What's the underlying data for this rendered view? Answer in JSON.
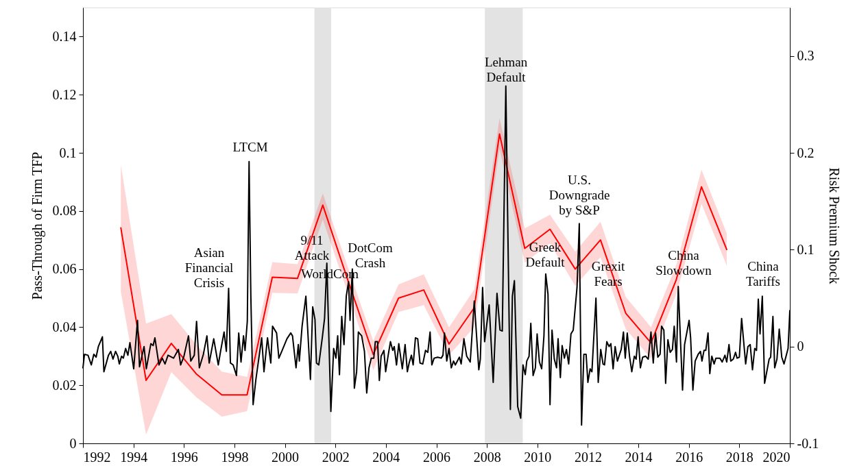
{
  "chart_data": {
    "type": "line",
    "ylabel": "Pass-Through of Firm TFP",
    "y2label": "Risk Premium Shock",
    "xlim": [
      1992,
      2020
    ],
    "xticks": [
      1992,
      1994,
      1996,
      1998,
      2000,
      2002,
      2004,
      2006,
      2008,
      2010,
      2012,
      2014,
      2016,
      2018,
      2020
    ],
    "ylim": [
      0,
      0.15
    ],
    "yticks": [
      0,
      0.02,
      0.04,
      0.06,
      0.08,
      0.1,
      0.12,
      0.14
    ],
    "y2lim": [
      -0.1,
      0.35
    ],
    "y2ticks": [
      -0.1,
      0,
      0.1,
      0.2,
      0.3
    ],
    "grid": false,
    "bands": [
      {
        "axis": "x",
        "from": 2001.17,
        "to": 2001.83,
        "color": "#e3e3e3"
      },
      {
        "axis": "x",
        "from": 2007.92,
        "to": 2009.42,
        "color": "#e3e3e3"
      }
    ],
    "annotations": [
      "Asian\nFinancial\nCrisis",
      "LTCM",
      "9/11\nAttack",
      "WorldCom",
      "DotCom\nCrash",
      "Lehman\nDefault",
      "Greek\nDefault",
      "U.S.\nDowngrade\nby S&P",
      "Grexit\nFears",
      "China\nSlowdown",
      "China\nTariffs"
    ],
    "series": [
      {
        "color": "#ff0000",
        "x": [
          1993.5,
          1994.5,
          1995.5,
          1996.5,
          1997.5,
          1998.5,
          1999.5,
          2000.5,
          2001.5,
          2002.5,
          2003.5,
          2004.5,
          2005.5,
          2006.5,
          2007.5,
          2008.5,
          2009.5,
          2010.5,
          2011.5,
          2012.5,
          2013.5,
          2014.5,
          2015.5,
          2016.5,
          2017.5
        ],
        "values": [
          0.0742,
          0.0217,
          0.0344,
          0.0238,
          0.0167,
          0.0167,
          0.0572,
          0.0568,
          0.082,
          0.056,
          0.0306,
          0.05,
          0.0528,
          0.0342,
          0.0467,
          0.1065,
          0.0671,
          0.0737,
          0.06,
          0.07,
          0.0448,
          0.0346,
          0.0563,
          0.0883,
          0.0667
        ],
        "lower": [
          0.0523,
          0.003,
          0.0245,
          0.0158,
          0.0092,
          0.0111,
          0.0518,
          0.0516,
          0.077,
          0.0515,
          0.0252,
          0.0452,
          0.0476,
          0.0304,
          0.04,
          0.1013,
          0.0622,
          0.0688,
          0.0542,
          0.0641,
          0.0393,
          0.0292,
          0.0513,
          0.0824,
          0.0612
        ],
        "upper": [
          0.0959,
          0.0412,
          0.0445,
          0.0339,
          0.0247,
          0.0229,
          0.0624,
          0.0617,
          0.086,
          0.0605,
          0.0353,
          0.0547,
          0.0582,
          0.04,
          0.053,
          0.1119,
          0.074,
          0.0787,
          0.066,
          0.0763,
          0.0504,
          0.04,
          0.0613,
          0.0942,
          0.0723
        ]
      },
      {
        "color": "#000000",
        "axis": "y2",
        "x": [
          1992.0,
          1992.06,
          1992.2,
          1992.33,
          1992.43,
          1992.52,
          1992.61,
          1992.77,
          1992.83,
          1993.01,
          1993.1,
          1993.19,
          1993.29,
          1993.38,
          1993.44,
          1993.53,
          1993.6,
          1993.69,
          1993.78,
          1993.86,
          1994.01,
          1994.16,
          1994.24,
          1994.42,
          1994.51,
          1994.69,
          1994.78,
          1994.85,
          1995.01,
          1995.14,
          1995.25,
          1995.37,
          1995.59,
          1995.78,
          1995.87,
          1996.0,
          1996.18,
          1996.27,
          1996.41,
          1996.5,
          1996.61,
          1996.77,
          1996.91,
          1997.0,
          1997.18,
          1997.36,
          1997.45,
          1997.59,
          1997.68,
          1997.77,
          1997.84,
          1997.95,
          1998.08,
          1998.17,
          1998.26,
          1998.36,
          1998.42,
          1998.51,
          1998.58,
          1998.65,
          1998.74,
          1998.85,
          1999.08,
          1999.17,
          1999.31,
          1999.44,
          1999.51,
          1999.67,
          1999.76,
          1999.89,
          2000.08,
          2000.23,
          2000.3,
          2000.44,
          2000.53,
          2000.57,
          2000.68,
          2000.83,
          2001.01,
          2001.1,
          2001.19,
          2001.25,
          2001.34,
          2001.48,
          2001.57,
          2001.66,
          2001.82,
          2001.93,
          2002.02,
          2002.09,
          2002.16,
          2002.25,
          2002.34,
          2002.43,
          2002.52,
          2002.58,
          2002.67,
          2002.75,
          2002.84,
          2002.91,
          2003.04,
          2003.15,
          2003.24,
          2003.33,
          2003.42,
          2003.52,
          2003.58,
          2003.67,
          2003.74,
          2003.81,
          2003.92,
          2003.99,
          2004.09,
          2004.18,
          2004.27,
          2004.33,
          2004.42,
          2004.51,
          2004.65,
          2004.76,
          2004.85,
          2004.92,
          2005.01,
          2005.08,
          2005.17,
          2005.26,
          2005.35,
          2005.46,
          2005.57,
          2005.66,
          2005.75,
          2005.82,
          2005.91,
          2006.05,
          2006.19,
          2006.26,
          2006.32,
          2006.41,
          2006.5,
          2006.59,
          2006.68,
          2006.75,
          2006.91,
          2006.98,
          2007.09,
          2007.2,
          2007.34,
          2007.5,
          2007.68,
          2007.74,
          2007.83,
          2007.91,
          2008.09,
          2008.25,
          2008.4,
          2008.52,
          2008.61,
          2008.75,
          2008.93,
          2009.01,
          2009.09,
          2009.22,
          2009.34,
          2009.43,
          2009.52,
          2009.58,
          2009.67,
          2009.74,
          2009.83,
          2009.92,
          2009.99,
          2010.08,
          2010.17,
          2010.26,
          2010.33,
          2010.42,
          2010.5,
          2010.58,
          2010.67,
          2010.76,
          2010.82,
          2010.91,
          2010.98,
          2011.07,
          2011.15,
          2011.24,
          2011.33,
          2011.42,
          2011.57,
          2011.66,
          2011.75,
          2011.84,
          2011.93,
          2012.0,
          2012.09,
          2012.16,
          2012.32,
          2012.41,
          2012.51,
          2012.6,
          2012.66,
          2012.75,
          2012.84,
          2012.91,
          2013.0,
          2013.08,
          2013.17,
          2013.32,
          2013.41,
          2013.48,
          2013.56,
          2013.65,
          2013.74,
          2013.84,
          2013.91,
          2013.99,
          2014.08,
          2014.17,
          2014.29,
          2014.39,
          2014.5,
          2014.59,
          2014.68,
          2014.77,
          2014.86,
          2014.92,
          2015.01,
          2015.08,
          2015.17,
          2015.26,
          2015.35,
          2015.42,
          2015.51,
          2015.58,
          2015.75,
          2015.83,
          2016.01,
          2016.07,
          2016.16,
          2016.25,
          2016.37,
          2016.46,
          2016.52,
          2016.6,
          2016.67,
          2016.76,
          2016.83,
          2016.91,
          2017.0,
          2017.07,
          2017.23,
          2017.32,
          2017.43,
          2017.5,
          2017.59,
          2017.66,
          2017.76,
          2017.85,
          2017.91,
          2018.0,
          2018.09,
          2018.25,
          2018.34,
          2018.43,
          2018.52,
          2018.61,
          2018.68,
          2018.75,
          2018.82,
          2018.91,
          2019.0,
          2019.18,
          2019.24,
          2019.33,
          2019.4,
          2019.49,
          2019.58,
          2019.68,
          2019.77,
          2019.93,
          2020.0
        ],
        "values": [
          -0.022,
          -0.008,
          -0.009,
          -0.019,
          -0.008,
          -0.011,
          0.0,
          0.01,
          -0.026,
          -0.009,
          -0.005,
          -0.013,
          -0.005,
          -0.01,
          -0.018,
          -0.01,
          -0.012,
          -0.002,
          -0.009,
          0.004,
          -0.023,
          0.027,
          -0.021,
          0.0,
          -0.023,
          0.003,
          0.001,
          0.009,
          -0.019,
          -0.012,
          -0.018,
          -0.009,
          -0.012,
          -0.003,
          -0.019,
          -0.01,
          0.011,
          -0.015,
          -0.009,
          0.026,
          -0.022,
          -0.008,
          0.011,
          -0.017,
          0.008,
          -0.019,
          -0.005,
          0.015,
          -0.005,
          0.06,
          -0.017,
          -0.019,
          -0.03,
          0.014,
          -0.016,
          0.011,
          -0.004,
          0.026,
          0.191,
          0.052,
          -0.06,
          -0.034,
          0.009,
          -0.026,
          0.009,
          -0.017,
          0.021,
          0.014,
          -0.012,
          -0.004,
          0.008,
          0.014,
          0.011,
          -0.022,
          0.002,
          -0.015,
          0.021,
          0.052,
          -0.034,
          0.041,
          0.028,
          -0.017,
          -0.019,
          0.009,
          0.029,
          0.086,
          -0.067,
          -0.002,
          -0.012,
          0.011,
          -0.029,
          0.031,
          0.002,
          0.052,
          0.067,
          0.027,
          0.08,
          -0.043,
          -0.026,
          0.015,
          0.011,
          -0.005,
          -0.048,
          -0.022,
          -0.012,
          -0.012,
          0.005,
          0.005,
          -0.035,
          -0.01,
          -0.004,
          -0.026,
          -0.009,
          0.005,
          -0.004,
          0.0,
          -0.019,
          0.003,
          -0.023,
          0.002,
          -0.026,
          -0.017,
          -0.009,
          -0.019,
          0.009,
          0.008,
          -0.017,
          -0.018,
          -0.004,
          -0.006,
          0.015,
          -0.019,
          -0.012,
          -0.011,
          -0.012,
          -0.009,
          0.014,
          -0.015,
          -0.002,
          -0.022,
          -0.015,
          -0.019,
          -0.011,
          -0.018,
          0.008,
          -0.01,
          -0.016,
          0.047,
          -0.024,
          -0.013,
          0.061,
          0.005,
          0.043,
          -0.037,
          0.055,
          0.017,
          0.016,
          0.269,
          -0.065,
          0.052,
          0.068,
          -0.062,
          -0.074,
          -0.019,
          -0.029,
          -0.015,
          -0.01,
          0.024,
          -0.03,
          -0.022,
          0.013,
          -0.016,
          -0.023,
          0.011,
          0.075,
          0.054,
          -0.06,
          0.017,
          -0.013,
          -0.022,
          0.008,
          -0.032,
          0.001,
          -0.012,
          -0.003,
          -0.018,
          0.013,
          0.017,
          0.061,
          0.127,
          -0.081,
          -0.008,
          -0.008,
          -0.037,
          -0.023,
          -0.026,
          0.05,
          -0.037,
          -0.003,
          -0.018,
          -0.019,
          0.005,
          0.0,
          0.003,
          -0.023,
          0.0,
          -0.015,
          -0.003,
          0.015,
          -0.012,
          0.014,
          -0.01,
          -0.026,
          -0.01,
          -0.013,
          0.01,
          -0.022,
          -0.011,
          -0.01,
          -0.013,
          0.015,
          -0.017,
          0.014,
          -0.011,
          -0.008,
          0.021,
          0.017,
          -0.038,
          0.007,
          -0.006,
          -0.003,
          0.021,
          -0.016,
          0.062,
          -0.045,
          0.002,
          0.027,
          0.009,
          -0.045,
          -0.015,
          -0.008,
          -0.005,
          -0.015,
          -0.004,
          -0.004,
          0.014,
          -0.028,
          -0.01,
          -0.018,
          -0.012,
          -0.012,
          -0.016,
          -0.009,
          -0.016,
          0.002,
          -0.015,
          -0.013,
          -0.006,
          -0.012,
          -0.011,
          0.029,
          -0.018,
          0.0,
          0.002,
          -0.024,
          -0.002,
          -0.004,
          0.049,
          0.013,
          0.052,
          -0.038,
          -0.013,
          -0.011,
          0.031,
          -0.022,
          -0.013,
          0.018,
          -0.011,
          -0.018,
          -0.002,
          0.037
        ]
      }
    ]
  }
}
